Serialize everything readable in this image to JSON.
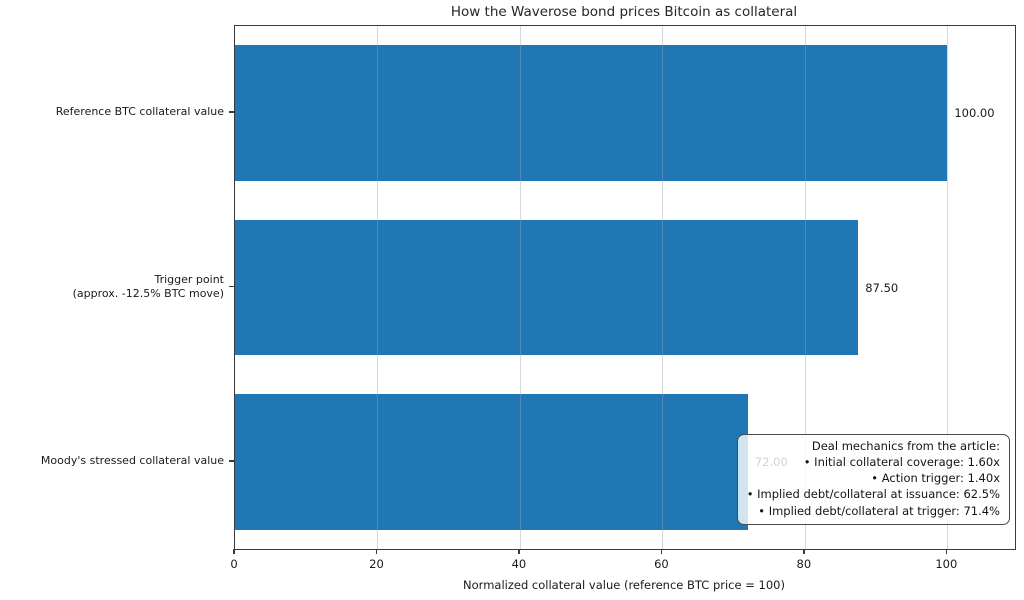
{
  "chart_data": {
    "type": "bar",
    "orientation": "horizontal",
    "title": "How the Waverose bond prices Bitcoin as collateral",
    "categories": [
      "Reference BTC collateral value",
      "Trigger point\n(approx. -12.5% BTC move)",
      "Moody's stressed collateral value"
    ],
    "values": [
      100.0,
      87.5,
      72.0
    ],
    "value_labels": [
      "100.00",
      "87.50",
      "72.00"
    ],
    "xlabel": "Normalized collateral value (reference BTC price = 100)",
    "ylabel": "",
    "xlim": [
      0,
      109.5
    ],
    "xticks": [
      0,
      20,
      40,
      60,
      80,
      100
    ],
    "grid": "vertical",
    "grid_over_bars": true,
    "legend": "none",
    "colors": {
      "bar": "#1f77b4",
      "grid": "#b0b0b0",
      "spine": "#3a3a3a",
      "text": "#1a1a1a"
    },
    "annotation": {
      "title": "Deal mechanics from the article:",
      "bullets": [
        "Initial collateral coverage: 1.60x",
        "Action trigger: 1.40x",
        "Implied debt/collateral at issuance: 62.5%",
        "Implied debt/collateral at trigger: 71.4%"
      ],
      "position": "lower right"
    }
  }
}
